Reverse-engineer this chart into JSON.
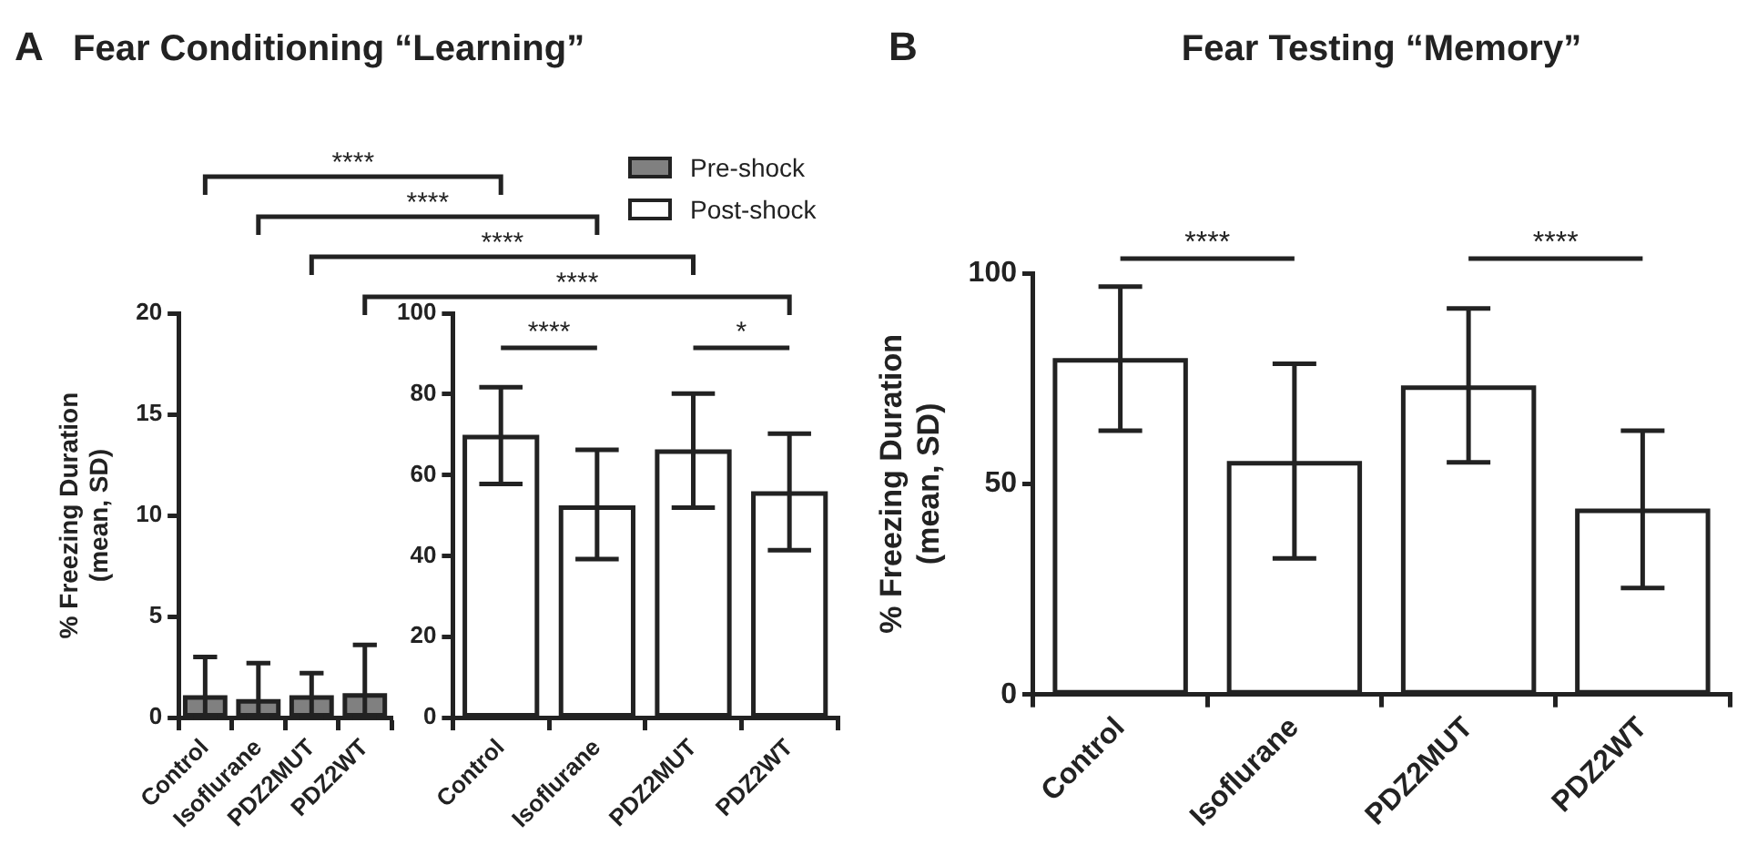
{
  "chart_data": [
    {
      "type": "bar",
      "title": "Fear Conditioning “Learning”",
      "ylabel": "% Freezing Duration (mean, SD)",
      "categories": [
        "Control",
        "Isoflurane",
        "PDZ2MUT",
        "PDZ2WT"
      ],
      "series": [
        {
          "name": "Pre-shock",
          "color": "#808080",
          "values": [
            1.0,
            0.8,
            1.0,
            1.1
          ],
          "errors": [
            [
              0,
              3.0
            ],
            [
              0,
              2.7
            ],
            [
              0,
              2.2
            ],
            [
              0,
              3.6
            ]
          ]
        }
      ],
      "ylim": [
        0,
        20
      ],
      "yticks": [
        0,
        5,
        10,
        15,
        20
      ],
      "legend": "top right",
      "annotations": [
        "A",
        "****",
        "****",
        "****",
        "****"
      ]
    },
    {
      "type": "bar",
      "categories": [
        "Control",
        "Isoflurane",
        "PDZ2MUT",
        "PDZ2WT"
      ],
      "series": [
        {
          "name": "Post-shock",
          "color": "#ffffff",
          "values": [
            69.4,
            51.9,
            65.8,
            55.4
          ],
          "errors": [
            [
              57.8,
              81.7
            ],
            [
              39.2,
              66.2
            ],
            [
              51.9,
              80.1
            ],
            [
              41.4,
              70.2
            ]
          ]
        }
      ],
      "ylim": [
        0,
        100
      ],
      "yticks": [
        0,
        20,
        40,
        60,
        80,
        100
      ],
      "legend": "top right",
      "annotations": [
        "****",
        "*"
      ]
    },
    {
      "type": "bar",
      "title": "Fear Testing “Memory”",
      "ylabel": "% Freezing Duration (mean, SD)",
      "categories": [
        "Control",
        "Isoflurane",
        "PDZ2MUT",
        "PDZ2WT"
      ],
      "series": [
        {
          "color": "#ffffff",
          "values": [
            79.3,
            54.9,
            72.8,
            43.6
          ],
          "errors": [
            [
              62.6,
              96.8
            ],
            [
              32.3,
              78.5
            ],
            [
              55.1,
              91.6
            ],
            [
              25.3,
              62.6
            ]
          ]
        }
      ],
      "ylim": [
        0,
        100
      ],
      "yticks": [
        0,
        50,
        100
      ],
      "annotations": [
        "B",
        "****",
        "****"
      ]
    }
  ]
}
